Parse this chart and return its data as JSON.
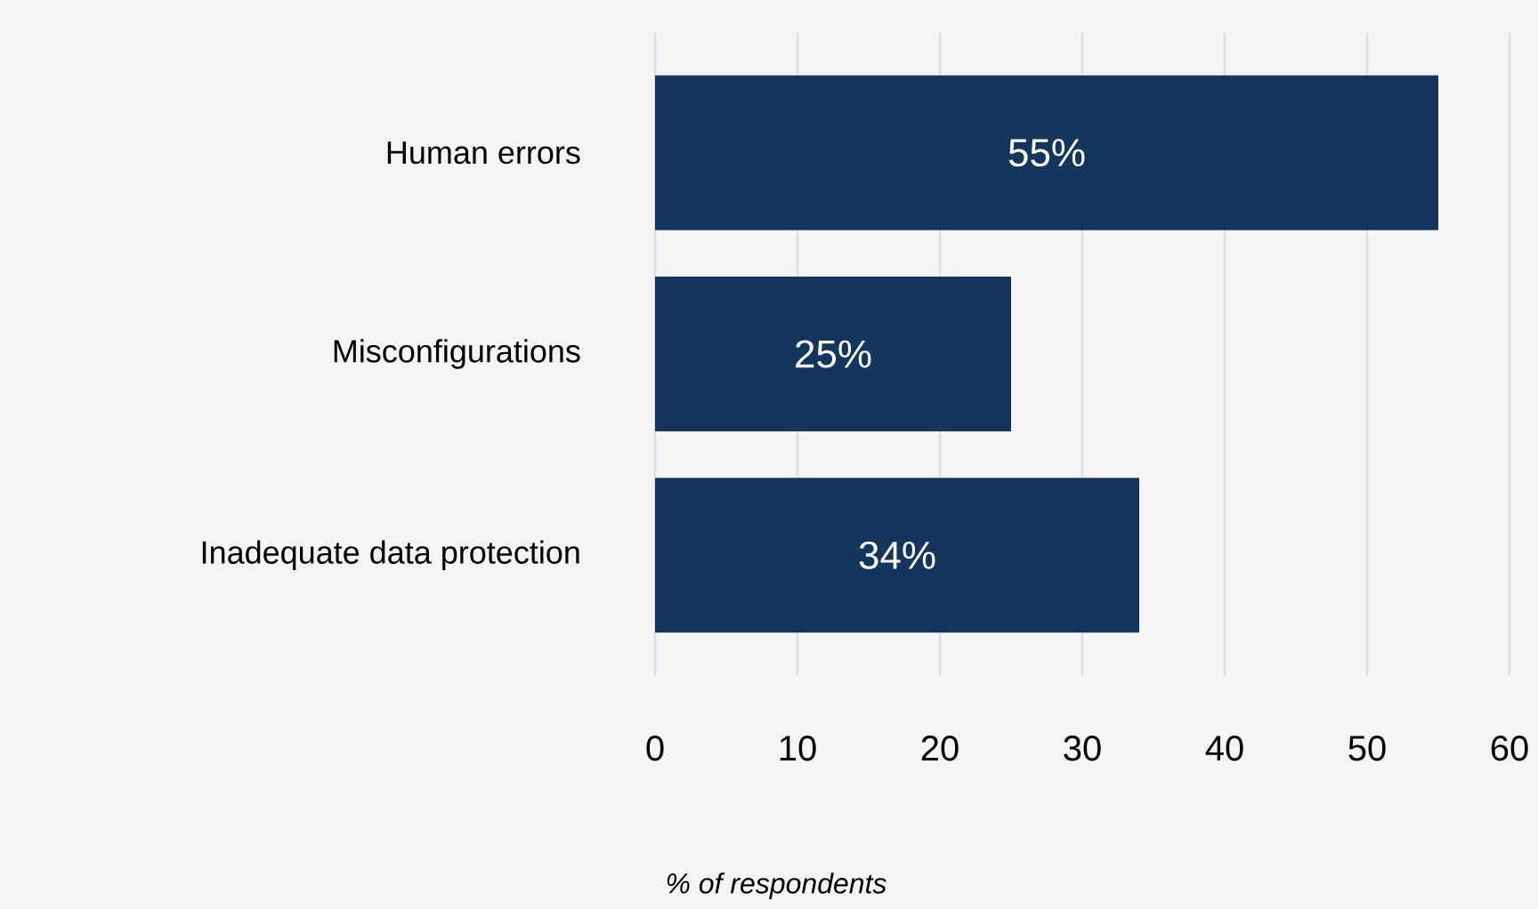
{
  "chart_data": {
    "type": "bar",
    "orientation": "horizontal",
    "xlabel": "% of respondents",
    "categories": [
      "Human errors",
      "Misconfigurations",
      "Inadequate data protection"
    ],
    "values": [
      55,
      25,
      34
    ],
    "value_labels": [
      "55%",
      "25%",
      "34%"
    ],
    "color": "#14365c",
    "xlim": [
      0,
      60
    ],
    "xticks": [
      0,
      10,
      20,
      30,
      40,
      50,
      60
    ],
    "grid": "x"
  }
}
